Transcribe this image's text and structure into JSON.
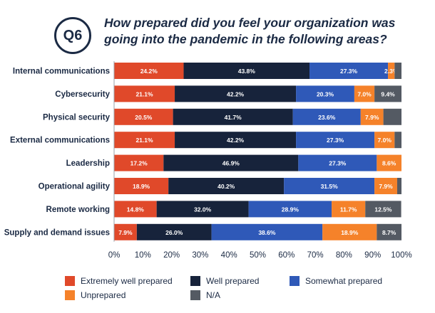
{
  "header": {
    "badge": "Q6",
    "title_line1": "How prepared did you feel your organization was",
    "title_line2": "going into the pandemic in the following areas?"
  },
  "chart_data": {
    "type": "bar",
    "orientation": "horizontal",
    "stacked": true,
    "categories": [
      "Internal communications",
      "Cybersecurity",
      "Physical security",
      "External communications",
      "Leadership",
      "Operational agility",
      "Remote working",
      "Supply and demand issues"
    ],
    "series": [
      {
        "name": "Extremely well prepared",
        "color": "#e0492a",
        "values": [
          24.2,
          21.1,
          20.5,
          21.1,
          17.2,
          18.9,
          14.8,
          7.9
        ],
        "labels": [
          "24.2%",
          "21.1%",
          "20.5%",
          "21.1%",
          "17.2%",
          "18.9%",
          "14.8%",
          "7.9%"
        ]
      },
      {
        "name": "Well prepared",
        "color": "#17233b",
        "values": [
          43.8,
          42.2,
          41.7,
          42.2,
          46.9,
          40.2,
          32.0,
          26.0
        ],
        "labels": [
          "43.8%",
          "42.2%",
          "41.7%",
          "42.2%",
          "46.9%",
          "40.2%",
          "32.0%",
          "26.0%"
        ]
      },
      {
        "name": "Somewhat prepared",
        "color": "#2f59b8",
        "values": [
          27.3,
          20.3,
          23.6,
          27.3,
          27.3,
          31.5,
          28.9,
          38.6
        ],
        "labels": [
          "27.3%",
          "20.3%",
          "23.6%",
          "27.3%",
          "27.3%",
          "31.5%",
          "28.9%",
          "38.6%"
        ]
      },
      {
        "name": "Unprepared",
        "color": "#f5822a",
        "values": [
          2.3,
          7.0,
          7.9,
          7.0,
          8.6,
          7.9,
          11.7,
          18.9
        ],
        "labels": [
          "2.3%",
          "7.0%",
          "7.9%",
          "7.0%",
          "8.6%",
          "7.9%",
          "11.7%",
          "18.9%"
        ]
      },
      {
        "name": "N/A",
        "color": "#545a63",
        "values": [
          2.4,
          9.4,
          6.3,
          2.4,
          0.0,
          1.5,
          12.5,
          8.7
        ],
        "labels": [
          "",
          "9.4%",
          "",
          "",
          "",
          "",
          "12.5%",
          "8.7%"
        ]
      }
    ],
    "x_ticks": [
      "0%",
      "10%",
      "20%",
      "30%",
      "40%",
      "50%",
      "60%",
      "70%",
      "80%",
      "90%",
      "100%"
    ],
    "xlim": [
      0,
      100
    ],
    "legend_position": "bottom"
  }
}
